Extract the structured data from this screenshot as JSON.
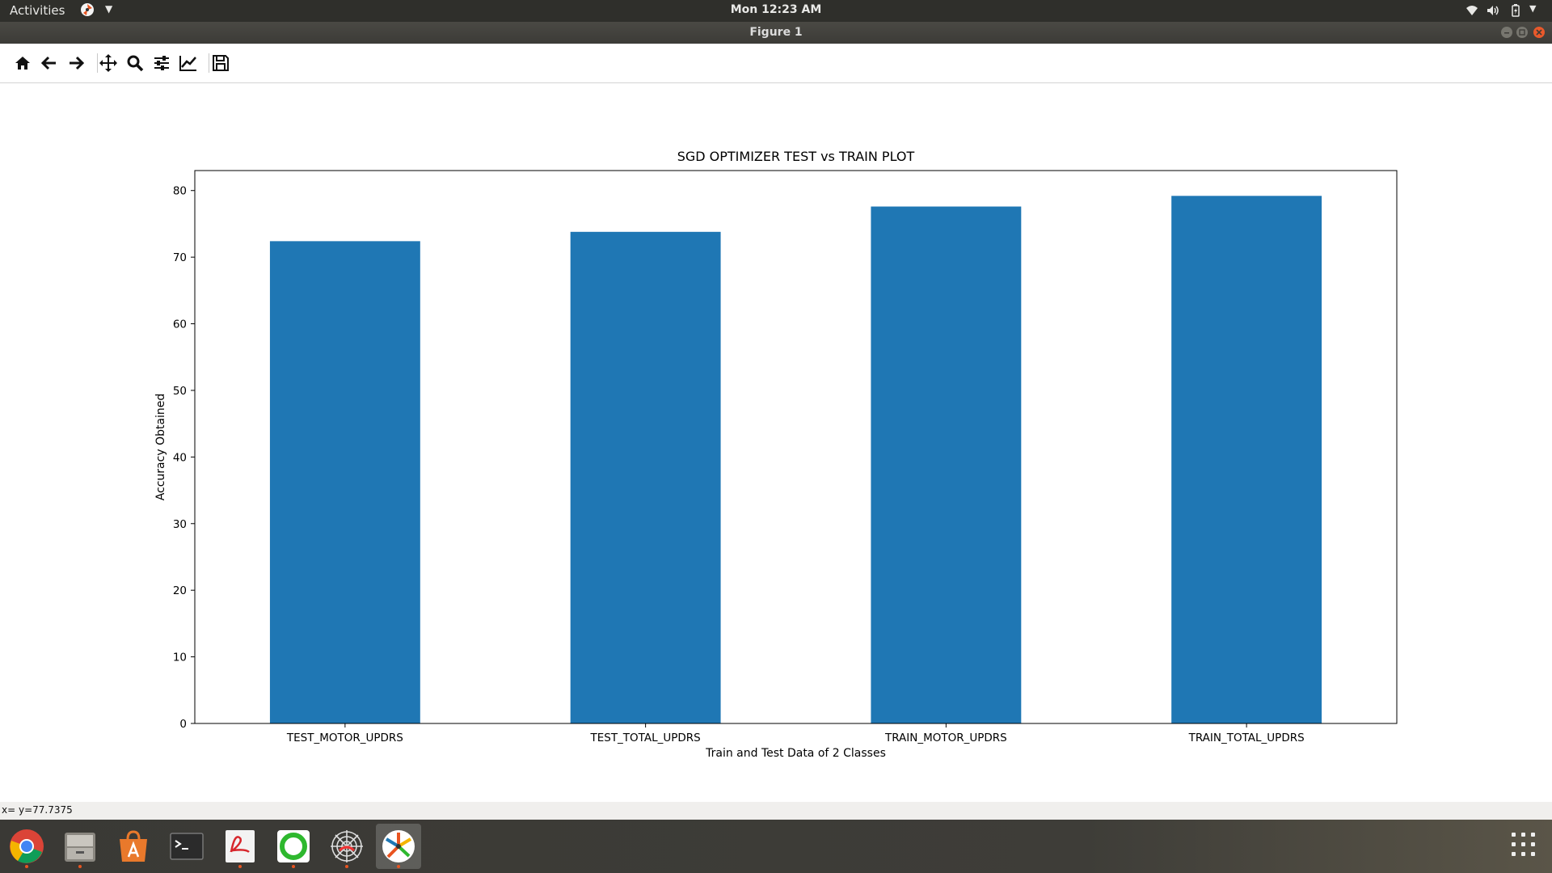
{
  "topbar": {
    "activities_label": "Activities",
    "clock": "Mon 12:23 AM"
  },
  "window": {
    "title": "Figure 1"
  },
  "toolbar": {
    "buttons": [
      "home-icon",
      "back-arrow-icon",
      "forward-arrow-icon",
      "pan-icon",
      "zoom-icon",
      "subplots-config-icon",
      "edit-axes-icon",
      "save-icon"
    ]
  },
  "status": {
    "coords": "x= y=77.7375"
  },
  "dock": {
    "apps": [
      "chrome-icon",
      "files-icon",
      "software-center-icon",
      "terminal-icon",
      "pdf-viewer-icon",
      "circle-app-icon",
      "spider-web-app-icon",
      "figure-app-icon"
    ],
    "accent_color": "#e95420"
  },
  "chart_data": {
    "type": "bar",
    "title": "SGD OPTIMIZER TEST vs TRAIN PLOT",
    "xlabel": "Train and Test Data of 2 Classes",
    "ylabel": "Accuracy Obtained",
    "categories": [
      "TEST_MOTOR_UPDRS",
      "TEST_TOTAL_UPDRS",
      "TRAIN_MOTOR_UPDRS",
      "TRAIN_TOTAL_UPDRS"
    ],
    "values": [
      72.4,
      73.8,
      77.6,
      79.2
    ],
    "ylim": [
      0,
      83
    ],
    "yticks": [
      0,
      10,
      20,
      30,
      40,
      50,
      60,
      70,
      80
    ],
    "grid": false,
    "bar_color": "#1f77b4"
  }
}
